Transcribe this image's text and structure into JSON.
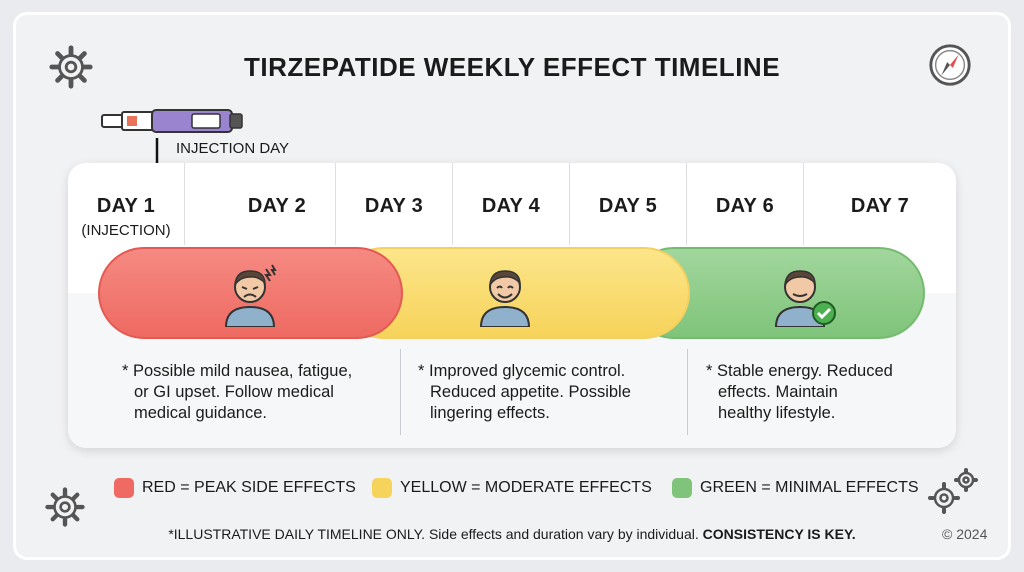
{
  "title": "TIRZEPATIDE WEEKLY EFFECT TIMELINE",
  "injection_label": "INJECTION DAY",
  "days": [
    {
      "label": "DAY 1",
      "sub": "(INJECTION)"
    },
    {
      "label": "DAY 2",
      "sub": ""
    },
    {
      "label": "DAY 3",
      "sub": ""
    },
    {
      "label": "DAY 4",
      "sub": ""
    },
    {
      "label": "DAY 5",
      "sub": ""
    },
    {
      "label": "DAY 6",
      "sub": ""
    },
    {
      "label": "DAY 7",
      "sub": ""
    }
  ],
  "phases": [
    {
      "color": "#ee6a62",
      "lines": [
        "* Possible mild nausea, fatigue,",
        "or GI upset. Follow medical",
        "medical guidance."
      ],
      "face": "distressed-face-icon"
    },
    {
      "color": "#f6d35a",
      "lines": [
        "* Improved glycemic control.",
        "Reduced appetite. Possible",
        "lingering effects."
      ],
      "face": "smiling-face-icon"
    },
    {
      "color": "#7fc47a",
      "lines": [
        "* Stable energy. Reduced",
        "effects. Maintain",
        "healthy lifestyle."
      ],
      "face": "person-check-icon"
    }
  ],
  "legend": [
    {
      "label": "RED = PEAK SIDE EFFECTS",
      "color": "#ee6a62"
    },
    {
      "label": "YELLOW = MODERATE EFFECTS",
      "color": "#f6d35a"
    },
    {
      "label": "GREEN = MINIMAL EFFECTS",
      "color": "#7fc47a"
    }
  ],
  "footnote_main": "*ILLUSTRATIVE DAILY TIMELINE ONLY. Side effects and duration vary by individual. ",
  "footnote_bold": "CONSISTENCY IS KEY.",
  "copyright": "© 2024"
}
